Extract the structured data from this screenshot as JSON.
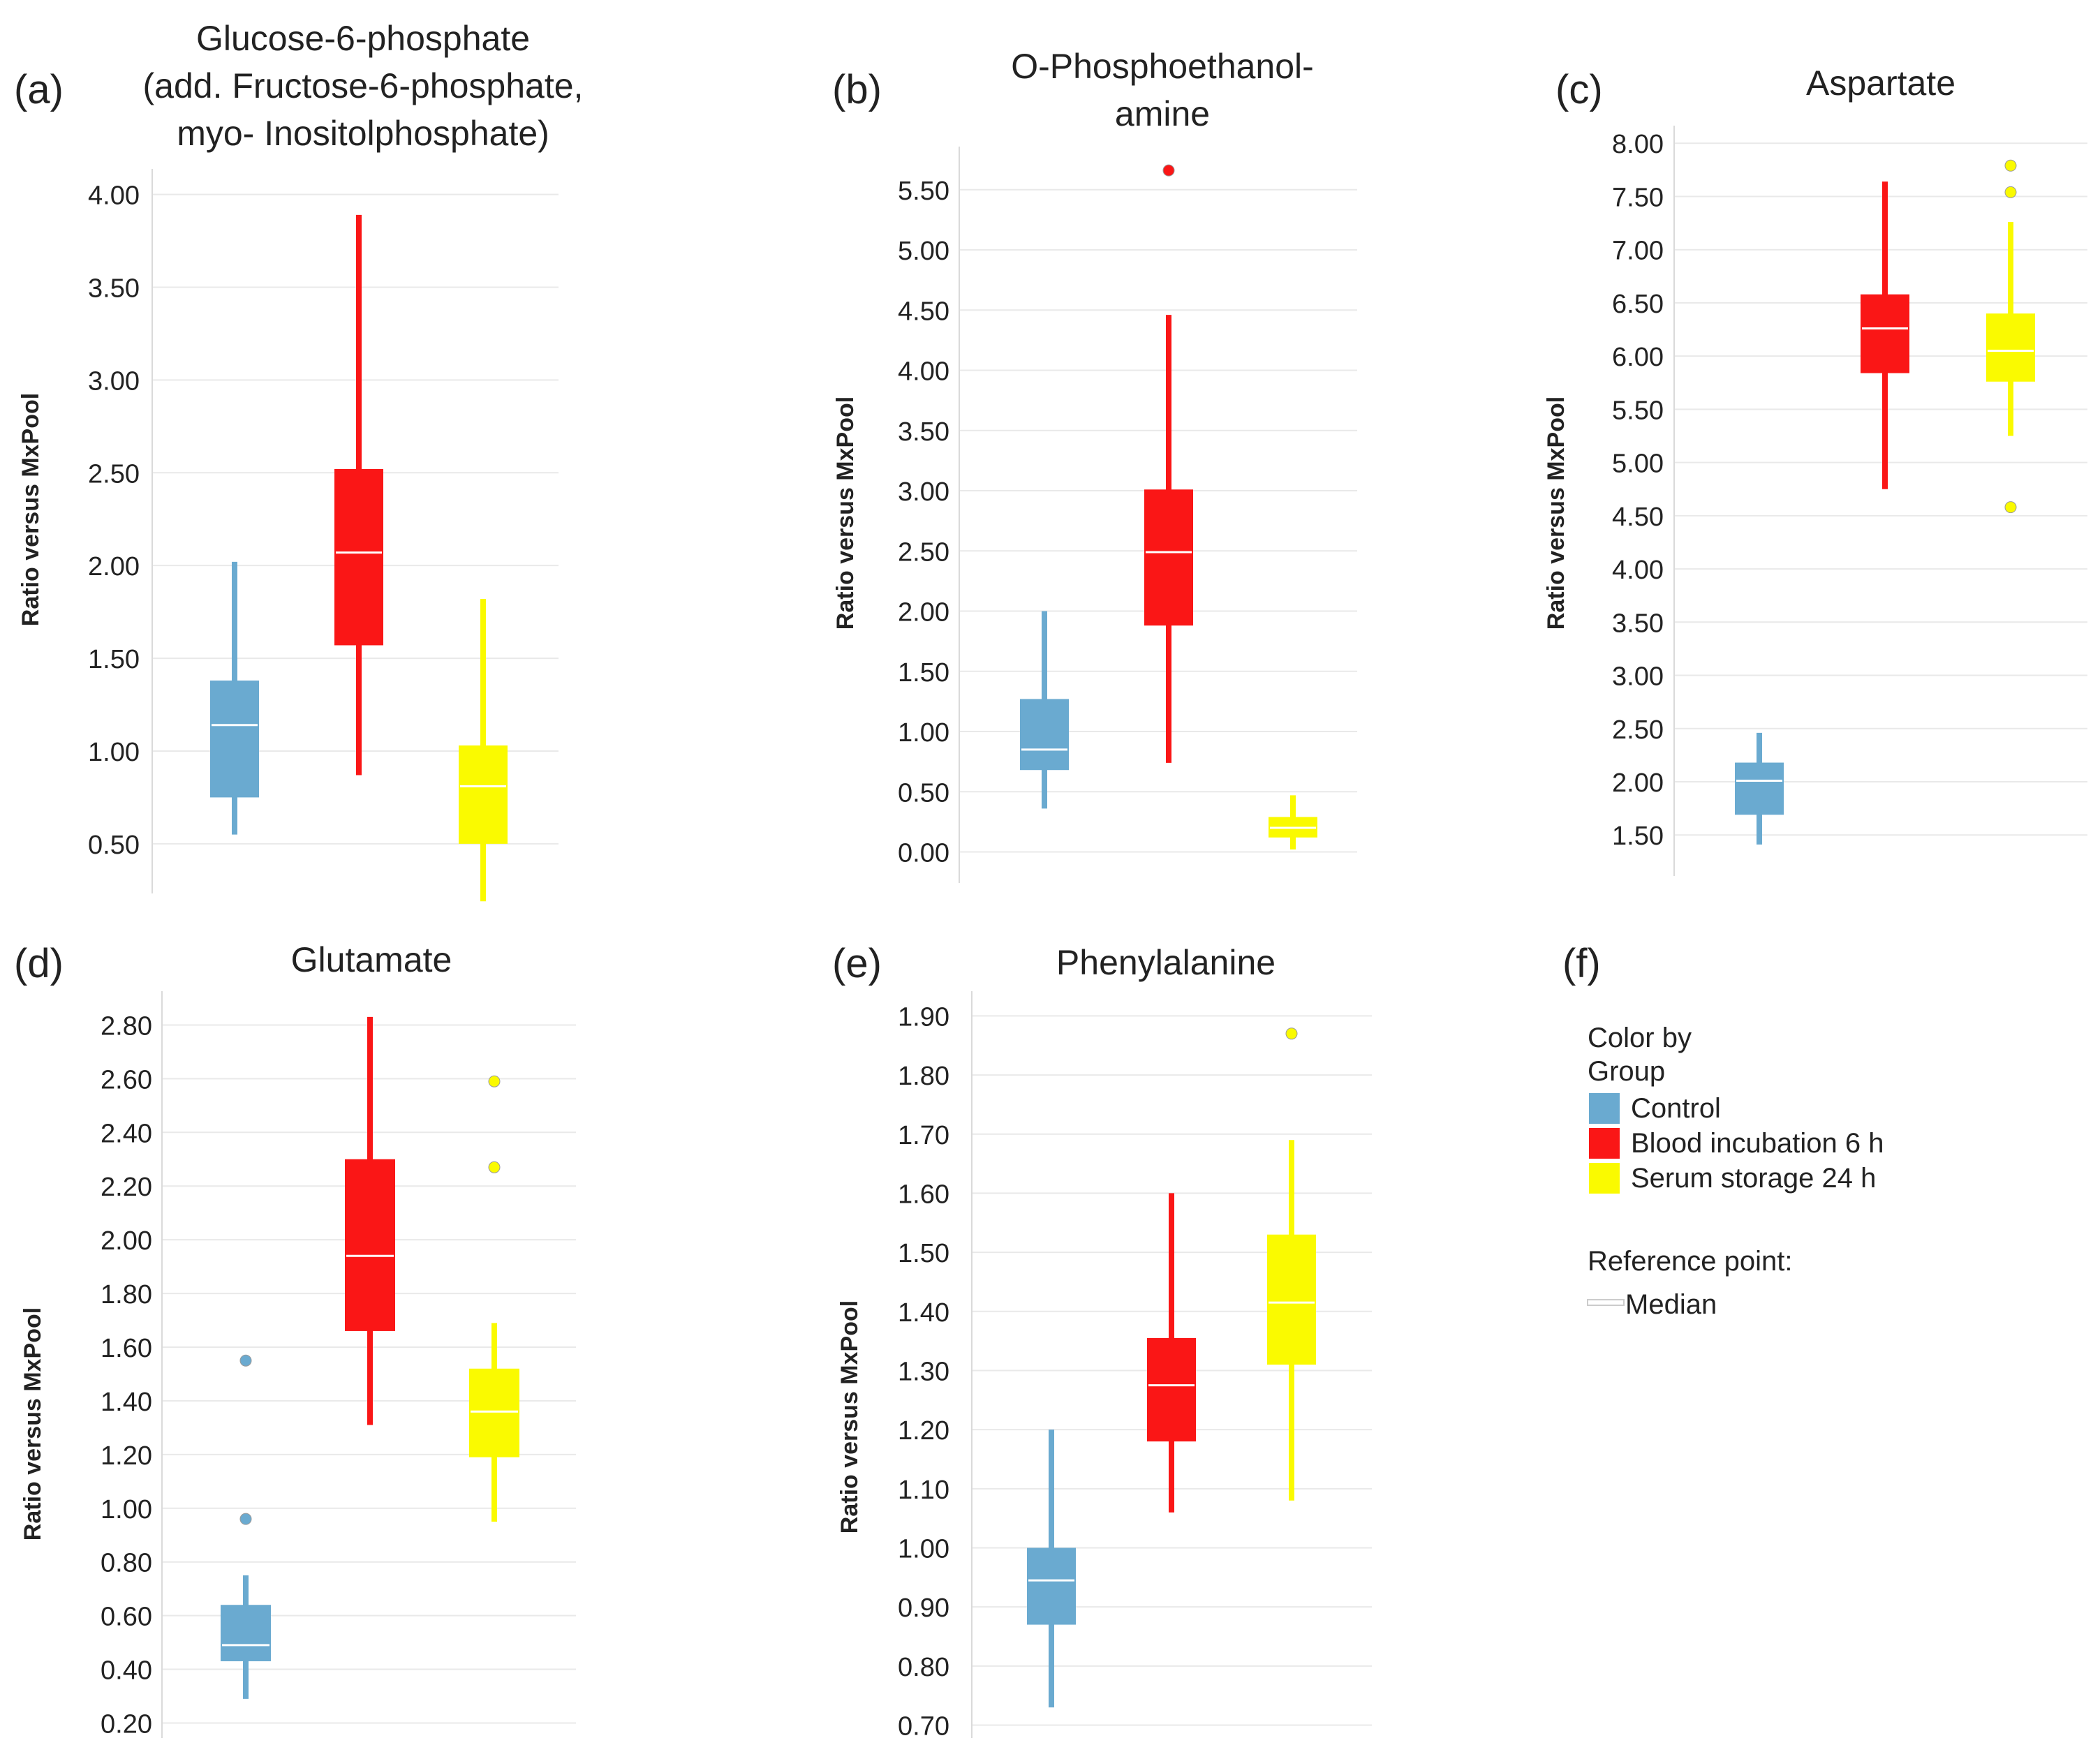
{
  "colors": {
    "control": "#6aaad0",
    "blood": "#fa1616",
    "serum": "#fafa00",
    "grid": "#e9e9e9",
    "axis": "#dadada",
    "text": "#222222",
    "median": "#ffffff"
  },
  "chart_data": [
    {
      "type": "box",
      "panel_label": "(a)",
      "title_lines": [
        "Glucose-6-phosphate",
        "(add. Fructose-6-phosphate,",
        "myo- Inositolphosphate)"
      ],
      "ylabel": "Ratio versus MxPool",
      "ylim": [
        0.27,
        4.1
      ],
      "yticks": [
        "0.50",
        "1.00",
        "1.50",
        "2.00",
        "2.50",
        "3.00",
        "3.50",
        "4.00"
      ],
      "groups": [
        {
          "name": "Control",
          "min": 0.55,
          "q1": 0.75,
          "median": 1.14,
          "q3": 1.38,
          "max": 2.02,
          "outliers": []
        },
        {
          "name": "Blood incubation 6 h",
          "min": 0.87,
          "q1": 1.57,
          "median": 2.07,
          "q3": 2.52,
          "max": 3.89,
          "outliers": []
        },
        {
          "name": "Serum storage 24 h",
          "min": 0.19,
          "q1": 0.5,
          "median": 0.81,
          "q3": 1.03,
          "max": 1.82,
          "outliers": []
        }
      ]
    },
    {
      "type": "box",
      "panel_label": "(b)",
      "title_lines": [
        "O-Phosphoethanol-",
        "amine"
      ],
      "ylabel": "Ratio versus MxPool",
      "ylim": [
        -0.2,
        5.8
      ],
      "yticks": [
        "0.00",
        "0.50",
        "1.00",
        "1.50",
        "2.00",
        "2.50",
        "3.00",
        "3.50",
        "4.00",
        "4.50",
        "5.00",
        "5.50"
      ],
      "groups": [
        {
          "name": "Control",
          "min": 0.36,
          "q1": 0.68,
          "median": 0.85,
          "q3": 1.27,
          "max": 2.0,
          "outliers": []
        },
        {
          "name": "Blood incubation 6 h",
          "min": 0.74,
          "q1": 1.88,
          "median": 2.49,
          "q3": 3.01,
          "max": 4.46,
          "outliers": [
            5.66
          ]
        },
        {
          "name": "Serum storage 24 h",
          "min": 0.02,
          "q1": 0.12,
          "median": 0.2,
          "q3": 0.29,
          "max": 0.47,
          "outliers": []
        }
      ]
    },
    {
      "type": "box",
      "panel_label": "(c)",
      "title_lines": [
        "Aspartate"
      ],
      "ylabel": "Ratio versus MxPool",
      "ylim": [
        1.18,
        8.1
      ],
      "yticks": [
        "1.50",
        "2.00",
        "2.50",
        "3.00",
        "3.50",
        "4.00",
        "4.50",
        "5.00",
        "5.50",
        "6.00",
        "6.50",
        "7.00",
        "7.50",
        "8.00"
      ],
      "groups": [
        {
          "name": "Control",
          "min": 1.41,
          "q1": 1.69,
          "median": 2.01,
          "q3": 2.18,
          "max": 2.46,
          "outliers": []
        },
        {
          "name": "Blood incubation 6 h",
          "min": 4.75,
          "q1": 5.84,
          "median": 6.26,
          "q3": 6.58,
          "max": 7.64,
          "outliers": []
        },
        {
          "name": "Serum storage 24 h",
          "min": 5.25,
          "q1": 5.76,
          "median": 6.05,
          "q3": 6.4,
          "max": 7.26,
          "outliers": [
            4.58,
            7.54,
            7.79
          ]
        }
      ]
    },
    {
      "type": "box",
      "panel_label": "(d)",
      "title_lines": [
        "Glutamate"
      ],
      "ylabel": "Ratio versus MxPool",
      "ylim": [
        0.17,
        2.9
      ],
      "yticks": [
        "0.20",
        "0.40",
        "0.60",
        "0.80",
        "1.00",
        "1.20",
        "1.40",
        "1.60",
        "1.80",
        "2.00",
        "2.20",
        "2.40",
        "2.60",
        "2.80"
      ],
      "groups": [
        {
          "name": "Control",
          "min": 0.29,
          "q1": 0.43,
          "median": 0.49,
          "q3": 0.64,
          "max": 0.75,
          "outliers": [
            0.96,
            1.55
          ]
        },
        {
          "name": "Blood incubation 6 h",
          "min": 1.31,
          "q1": 1.66,
          "median": 1.94,
          "q3": 2.3,
          "max": 2.83,
          "outliers": []
        },
        {
          "name": "Serum storage 24 h",
          "min": 0.95,
          "q1": 1.19,
          "median": 1.36,
          "q3": 1.52,
          "max": 1.69,
          "outliers": [
            2.27,
            2.59
          ]
        }
      ]
    },
    {
      "type": "box",
      "panel_label": "(e)",
      "title_lines": [
        "Phenylalanine"
      ],
      "ylabel": "Ratio versus MxPool",
      "ylim": [
        0.69,
        1.93
      ],
      "yticks": [
        "0.70",
        "0.80",
        "0.90",
        "1.00",
        "1.10",
        "1.20",
        "1.30",
        "1.40",
        "1.50",
        "1.60",
        "1.70",
        "1.80",
        "1.90"
      ],
      "groups": [
        {
          "name": "Control",
          "min": 0.73,
          "q1": 0.87,
          "median": 0.945,
          "q3": 1.0,
          "max": 1.2,
          "outliers": []
        },
        {
          "name": "Blood incubation 6 h",
          "min": 1.06,
          "q1": 1.18,
          "median": 1.275,
          "q3": 1.355,
          "max": 1.6,
          "outliers": []
        },
        {
          "name": "Serum storage 24 h",
          "min": 1.08,
          "q1": 1.31,
          "median": 1.415,
          "q3": 1.53,
          "max": 1.69,
          "outliers": [
            1.87
          ]
        }
      ]
    }
  ],
  "legend": {
    "panel_label": "(f)",
    "title_line1": "Color by",
    "title_line2": "Group",
    "items": [
      {
        "label": "Control",
        "color": "#6aaad0"
      },
      {
        "label": "Blood incubation 6 h",
        "color": "#fa1616"
      },
      {
        "label": "Serum storage 24 h",
        "color": "#fafa00"
      }
    ],
    "reference_title": "Reference point:",
    "reference_label": "Median"
  }
}
